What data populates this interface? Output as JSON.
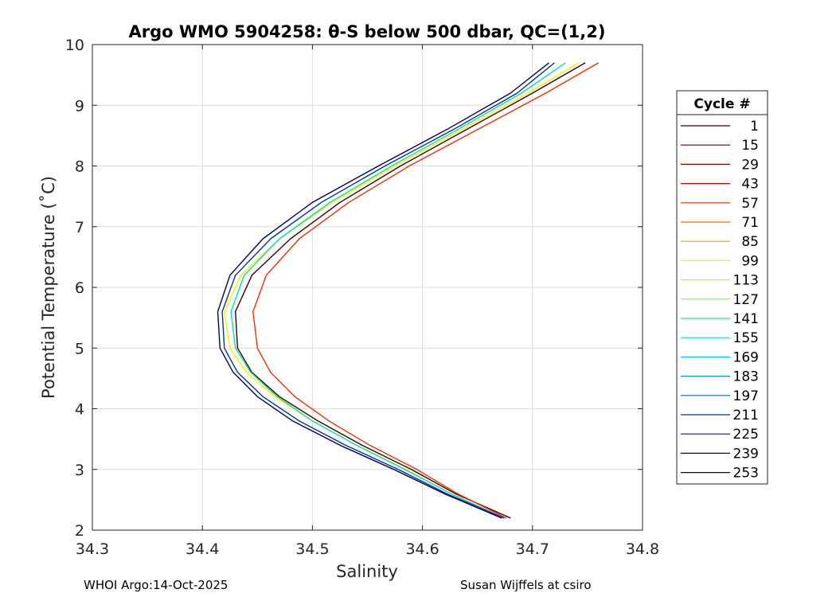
{
  "chart_data": {
    "type": "line",
    "title": "Argo WMO 5904258: θ-S below 500 dbar,  QC=(1,2)",
    "xlabel": "Salinity",
    "ylabel": "Potential Temperature (˚C)",
    "xlim": [
      34.3,
      34.8
    ],
    "ylim": [
      2,
      10
    ],
    "xticks": [
      "34.3",
      "34.4",
      "34.5",
      "34.6",
      "34.7",
      "34.8"
    ],
    "yticks": [
      "2",
      "3",
      "4",
      "5",
      "6",
      "7",
      "8",
      "9",
      "10"
    ],
    "grid": true,
    "legend": {
      "title": "Cycle #",
      "placement": "right",
      "entries": [
        "1",
        "15",
        "29",
        "43",
        "57",
        "71",
        "85",
        "99",
        "113",
        "127",
        "141",
        "155",
        "169",
        "183",
        "197",
        "211",
        "225",
        "239",
        "253"
      ],
      "colors": [
        "#3a0000",
        "#6a0000",
        "#9a0000",
        "#cc0000",
        "#ff2a00",
        "#ff6a00",
        "#e6a000",
        "#ffee00",
        "#aaff22",
        "#66ff44",
        "#22ee77",
        "#00e6aa",
        "#00ccee",
        "#0099cc",
        "#0066bb",
        "#0033aa",
        "#0011aa",
        "#000088",
        "#00006a"
      ]
    },
    "series": [
      {
        "name": "1",
        "color": "#3a0000",
        "temperature": [
          9.7,
          9.2,
          8.6,
          8.0,
          7.4,
          6.8,
          6.2,
          5.6,
          5.0,
          4.6,
          4.2,
          3.8,
          3.4,
          3.0,
          2.6,
          2.2
        ],
        "salinity": [
          34.748,
          34.7,
          34.64,
          34.58,
          34.525,
          34.48,
          34.445,
          34.43,
          34.432,
          34.445,
          34.47,
          34.505,
          34.545,
          34.59,
          34.63,
          34.68
        ]
      },
      {
        "name": "57",
        "color": "#ff2a00",
        "temperature": [
          9.7,
          9.2,
          8.6,
          8.0,
          7.4,
          6.8,
          6.2,
          5.6,
          5.0,
          4.6,
          4.2,
          3.8,
          3.4,
          3.0,
          2.6,
          2.2
        ],
        "salinity": [
          34.76,
          34.712,
          34.65,
          34.588,
          34.533,
          34.488,
          34.458,
          34.446,
          34.45,
          34.462,
          34.484,
          34.515,
          34.552,
          34.595,
          34.632,
          34.676
        ]
      },
      {
        "name": "99",
        "color": "#ffee00",
        "temperature": [
          9.7,
          9.2,
          8.6,
          8.0,
          7.4,
          6.8,
          6.2,
          5.6,
          5.0,
          4.6,
          4.2,
          3.8,
          3.4,
          3.0,
          2.6,
          2.2
        ],
        "salinity": [
          34.742,
          34.696,
          34.636,
          34.575,
          34.518,
          34.47,
          34.435,
          34.42,
          34.425,
          34.44,
          34.466,
          34.5,
          34.54,
          34.585,
          34.626,
          34.672
        ]
      },
      {
        "name": "155",
        "color": "#00e6aa",
        "temperature": [
          9.7,
          9.2,
          8.6,
          8.0,
          7.4,
          6.8,
          6.2,
          5.6,
          5.0,
          4.6,
          4.2,
          3.8,
          3.4,
          3.0,
          2.6,
          2.2
        ],
        "salinity": [
          34.73,
          34.69,
          34.632,
          34.572,
          34.516,
          34.47,
          34.438,
          34.426,
          34.43,
          34.444,
          34.468,
          34.5,
          34.54,
          34.584,
          34.626,
          34.674
        ]
      },
      {
        "name": "211",
        "color": "#0033aa",
        "temperature": [
          9.7,
          9.2,
          8.6,
          8.0,
          7.4,
          6.8,
          6.2,
          5.6,
          5.0,
          4.6,
          4.2,
          3.8,
          3.4,
          3.0,
          2.6,
          2.2
        ],
        "salinity": [
          34.72,
          34.686,
          34.628,
          34.566,
          34.508,
          34.462,
          34.43,
          34.418,
          34.42,
          34.432,
          34.455,
          34.488,
          34.53,
          34.578,
          34.622,
          34.674
        ]
      },
      {
        "name": "253",
        "color": "#00006a",
        "temperature": [
          9.7,
          9.2,
          8.6,
          8.0,
          7.4,
          6.8,
          6.2,
          5.6,
          5.0,
          4.6,
          4.2,
          3.8,
          3.4,
          3.0,
          2.6,
          2.2
        ],
        "salinity": [
          34.715,
          34.68,
          34.622,
          34.56,
          34.5,
          34.455,
          34.425,
          34.414,
          34.416,
          34.428,
          34.45,
          34.482,
          34.525,
          34.574,
          34.62,
          34.672
        ]
      }
    ]
  },
  "footer": {
    "left": "WHOI Argo:14-Oct-2025",
    "right": "Susan Wijffels at csiro"
  }
}
